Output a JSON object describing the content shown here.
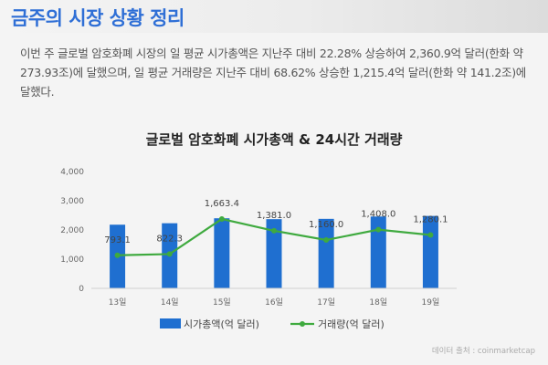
{
  "page": {
    "title": "금주의 시장 상황 정리",
    "summary": "이번 주 글로벌 암호화폐 시장의 일 평균 시가총액은 지난주 대비 22.28% 상승하여 2,360.9억 달러(한화 약 273.93조)에 달했으며, 일 평균 거래량은 지난주 대비 68.62% 상승한 1,215.4억 달러(한화 약 141.2조)에 달했다.",
    "source": "데이터 출처 : coinmarketcap"
  },
  "chart_data": {
    "type": "bar+line",
    "title": "글로벌 암호화폐 시가총액 & 24시간 거래량",
    "categories": [
      "13일",
      "14일",
      "15일",
      "16일",
      "17일",
      "18일",
      "19일"
    ],
    "ylim": [
      0,
      4000
    ],
    "yticks": [
      0,
      1000,
      2000,
      3000,
      4000
    ],
    "ytick_labels": [
      "0",
      "1,000",
      "2,000",
      "3,000",
      "4,000"
    ],
    "grid": false,
    "legend_position": "bottom",
    "series": [
      {
        "name": "시가총액(억 달러)",
        "kind": "bar",
        "color": "#1f6fd0",
        "values": [
          2180,
          2230,
          2400,
          2370,
          2380,
          2460,
          2480
        ]
      },
      {
        "name": "거래량(억 달러)",
        "kind": "line",
        "color": "#3faa3f",
        "values": [
          793.1,
          822.3,
          1663.4,
          1381.0,
          1160.0,
          1408.0,
          1280.1
        ],
        "labels": [
          "793.1",
          "822.3",
          "1,663.4",
          "1,381.0",
          "1,160.0",
          "1,408.0",
          "1,280.1"
        ]
      }
    ]
  }
}
